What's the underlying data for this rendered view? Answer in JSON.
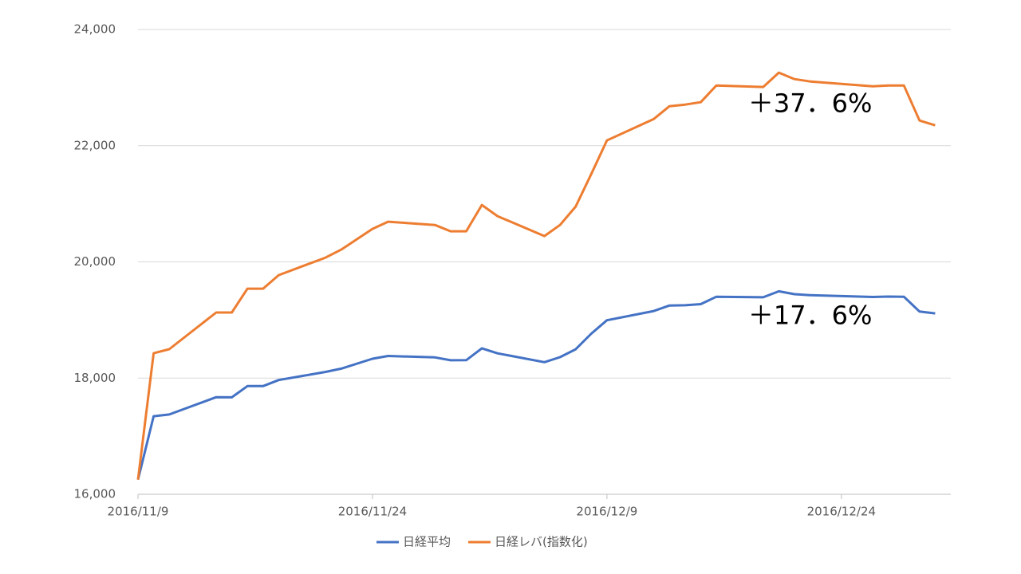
{
  "chart_data": {
    "type": "line",
    "x": [
      "2016/11/9",
      "2016/11/10",
      "2016/11/11",
      "2016/11/14",
      "2016/11/15",
      "2016/11/16",
      "2016/11/17",
      "2016/11/18",
      "2016/11/21",
      "2016/11/22",
      "2016/11/24",
      "2016/11/25",
      "2016/11/28",
      "2016/11/29",
      "2016/11/30",
      "2016/12/1",
      "2016/12/2",
      "2016/12/5",
      "2016/12/6",
      "2016/12/7",
      "2016/12/8",
      "2016/12/9",
      "2016/12/12",
      "2016/12/13",
      "2016/12/14",
      "2016/12/15",
      "2016/12/16",
      "2016/12/19",
      "2016/12/20",
      "2016/12/21",
      "2016/12/22",
      "2016/12/26",
      "2016/12/27",
      "2016/12/28",
      "2016/12/29",
      "2016/12/30"
    ],
    "series": [
      {
        "name": "日経平均",
        "color": "#4472c4",
        "values": [
          16251,
          17344,
          17374,
          17672,
          17668,
          17862,
          17862,
          17967,
          18106,
          18162,
          18333,
          18381,
          18356,
          18307,
          18308,
          18513,
          18426,
          18274,
          18360,
          18496,
          18765,
          18996,
          19155,
          19250,
          19253,
          19273,
          19401,
          19391,
          19494,
          19444,
          19427,
          19396,
          19403,
          19401,
          19145,
          19114
        ]
      },
      {
        "name": "日経レバ(指数化)",
        "color": "#ed7d31",
        "values": [
          16251,
          18428,
          18497,
          19128,
          19128,
          19539,
          19539,
          19772,
          20074,
          20211,
          20568,
          20691,
          20636,
          20527,
          20527,
          20980,
          20787,
          20444,
          20636,
          20952,
          21514,
          22091,
          22461,
          22680,
          22708,
          22749,
          23037,
          23010,
          23257,
          23147,
          23106,
          23023,
          23037,
          23037,
          22433,
          22351
        ]
      }
    ],
    "xlim": [
      "2016/11/9",
      "2016/12/31"
    ],
    "xticks": [
      "2016/11/9",
      "2016/11/24",
      "2016/12/9",
      "2016/12/24"
    ],
    "ylim": [
      16000,
      24000
    ],
    "yticks": [
      {
        "value": 16000,
        "label": "16,000"
      },
      {
        "value": 18000,
        "label": "18,000"
      },
      {
        "value": 20000,
        "label": "20,000"
      },
      {
        "value": 22000,
        "label": "22,000"
      },
      {
        "value": 24000,
        "label": "24,000"
      }
    ],
    "grid": true,
    "legend": "bottom",
    "annotations": [
      {
        "text": "＋37．6%",
        "x": "2016/12/22",
        "y": 22700
      },
      {
        "text": "＋17．6%",
        "x": "2016/12/22",
        "y": 19050
      }
    ]
  }
}
